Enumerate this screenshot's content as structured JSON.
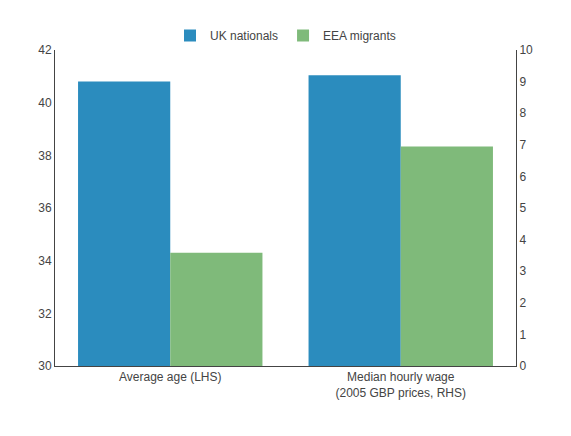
{
  "chart_data": {
    "type": "bar",
    "categories": [
      "Average age (LHS)",
      "Median hourly wage\n(2005 GBP prices, RHS)"
    ],
    "series": [
      {
        "name": "UK nationals",
        "color": "#2B8CBE",
        "values": [
          40.8,
          null
        ]
      },
      {
        "name": "EEA migrants",
        "color": "#7FBA7A",
        "values": [
          34.3,
          null
        ]
      },
      {
        "name": "UK nationals",
        "color": "#2B8CBE",
        "values": [
          null,
          9.2
        ],
        "axis": "y2"
      },
      {
        "name": "EEA migrants",
        "color": "#7FBA7A",
        "values": [
          null,
          6.95
        ],
        "axis": "y2"
      }
    ],
    "ylim": [
      30,
      42
    ],
    "yticks": [
      30,
      32,
      34,
      36,
      38,
      40,
      42
    ],
    "y2lim": [
      0,
      10
    ],
    "y2ticks": [
      0,
      1,
      2,
      3,
      4,
      5,
      6,
      7,
      8,
      9,
      10
    ],
    "grid": false,
    "legend": "upper center"
  }
}
